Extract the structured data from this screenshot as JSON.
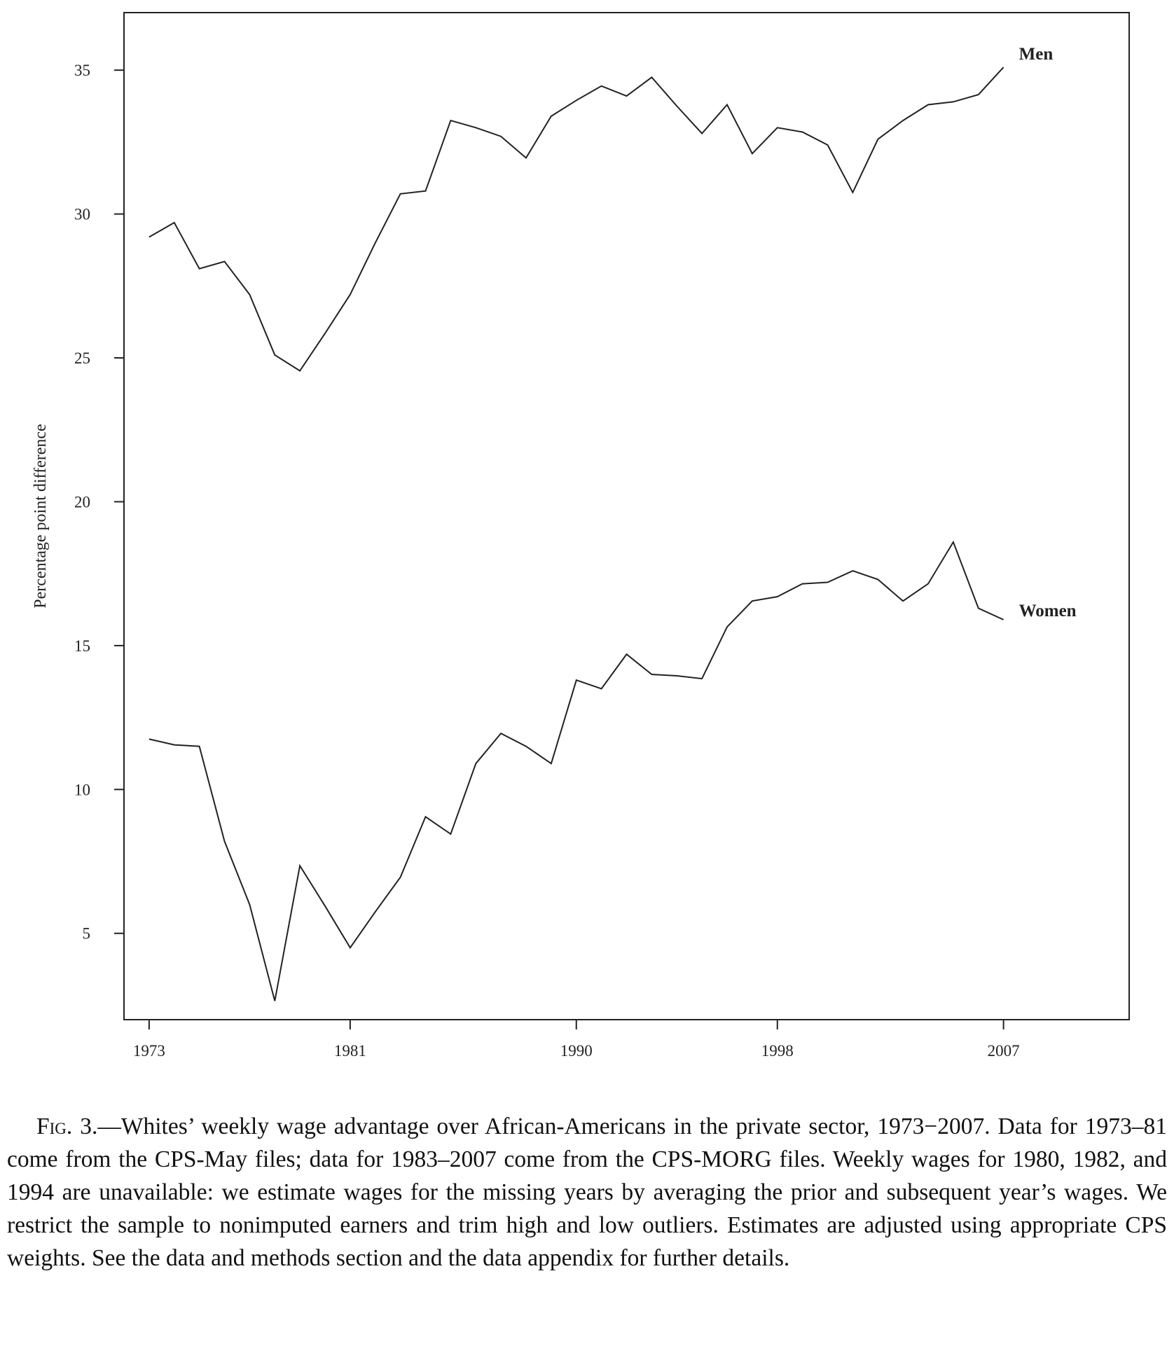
{
  "chart_data": {
    "type": "line",
    "title": "",
    "xlabel": "",
    "ylabel": "Percentage point difference",
    "xlim": [
      1972,
      2012
    ],
    "ylim": [
      2,
      37
    ],
    "x_ticks": [
      "1973",
      "1981",
      "1990",
      "1998",
      "2007"
    ],
    "y_ticks": [
      "5",
      "10",
      "15",
      "20",
      "25",
      "30",
      "35"
    ],
    "grid": false,
    "legend": "none",
    "x": [
      1973,
      1974,
      1975,
      1976,
      1977,
      1978,
      1979,
      1980,
      1981,
      1982,
      1983,
      1984,
      1985,
      1986,
      1987,
      1988,
      1989,
      1990,
      1991,
      1992,
      1993,
      1994,
      1995,
      1996,
      1997,
      1998,
      1999,
      2000,
      2001,
      2002,
      2003,
      2004,
      2005,
      2006,
      2007
    ],
    "series": [
      {
        "name": "Men",
        "values": [
          29.2,
          29.7,
          28.1,
          28.35,
          27.2,
          25.1,
          24.55,
          25.85,
          27.2,
          29.0,
          30.7,
          30.8,
          33.25,
          33.0,
          32.7,
          31.95,
          33.4,
          33.95,
          34.45,
          34.1,
          34.75,
          33.75,
          32.8,
          33.8,
          32.1,
          33.0,
          32.85,
          32.4,
          30.75,
          32.6,
          33.25,
          33.8,
          33.9,
          34.15,
          35.1
        ]
      },
      {
        "name": "Women",
        "values": [
          11.75,
          11.55,
          11.5,
          8.2,
          6.0,
          2.65,
          7.35,
          5.95,
          4.5,
          5.75,
          6.95,
          9.05,
          8.45,
          10.9,
          11.95,
          11.5,
          10.9,
          13.8,
          13.5,
          14.7,
          14.0,
          13.95,
          13.85,
          15.65,
          16.55,
          16.7,
          17.15,
          17.2,
          17.6,
          17.3,
          16.55,
          17.15,
          18.6,
          16.3,
          15.9
        ]
      }
    ]
  },
  "caption": {
    "fig_label": "Fig. 3.",
    "text": "—Whites’ weekly wage advantage over African-Americans in the private sector, 1973−2007. Data for 1973–81 come from the CPS-May files; data for 1983–2007 come from the CPS-MORG files. Weekly wages for 1980, 1982, and 1994 are unavailable: we estimate wages for the missing years by averaging the prior and subsequent year’s wages. We restrict the sample to nonimputed earners and trim high and low outliers. Estimates are adjusted using appropriate CPS weights. See the data and methods section and the data appendix for further details."
  }
}
